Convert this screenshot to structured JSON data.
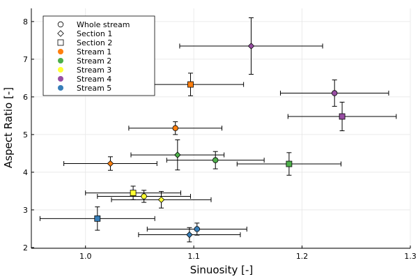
{
  "chart_data": {
    "type": "scatter",
    "title": "",
    "xlabel": "Sinuosity [-]",
    "ylabel": "Aspect Ratio [-]",
    "xlim": [
      0.95,
      1.3
    ],
    "ylim": [
      1.98,
      8.35
    ],
    "x_ticks": [
      1.0,
      1.1,
      1.2,
      1.3
    ],
    "y_ticks": [
      2,
      3,
      4,
      5,
      6,
      7,
      8
    ],
    "grid": true,
    "legend_position": "top-left",
    "shape_legend": [
      {
        "label": "Whole stream",
        "shape": "circle"
      },
      {
        "label": "Section 1",
        "shape": "diamond"
      },
      {
        "label": "Section 2",
        "shape": "square"
      }
    ],
    "series": [
      {
        "name": "Stream 1",
        "color": "#ff7f0e",
        "points": [
          {
            "shape": "circle",
            "x": 1.083,
            "y": 5.17,
            "xerr": 0.043,
            "yerr": 0.17
          },
          {
            "shape": "diamond",
            "x": 1.023,
            "y": 4.23,
            "xerr": 0.043,
            "yerr": 0.18
          },
          {
            "shape": "square",
            "x": 1.097,
            "y": 6.33,
            "xerr": 0.049,
            "yerr": 0.3
          }
        ]
      },
      {
        "name": "Stream 2",
        "color": "#4daf4a",
        "points": [
          {
            "shape": "circle",
            "x": 1.12,
            "y": 4.32,
            "xerr": 0.045,
            "yerr": 0.23
          },
          {
            "shape": "diamond",
            "x": 1.085,
            "y": 4.46,
            "xerr": 0.043,
            "yerr": 0.4
          },
          {
            "shape": "square",
            "x": 1.188,
            "y": 4.22,
            "xerr": 0.048,
            "yerr": 0.3
          }
        ]
      },
      {
        "name": "Stream 3",
        "color": "#ffff33",
        "points": [
          {
            "shape": "circle",
            "x": 1.054,
            "y": 3.36,
            "xerr": 0.043,
            "yerr": 0.16
          },
          {
            "shape": "diamond",
            "x": 1.07,
            "y": 3.27,
            "xerr": 0.046,
            "yerr": 0.22
          },
          {
            "shape": "square",
            "x": 1.044,
            "y": 3.45,
            "xerr": 0.044,
            "yerr": 0.18
          }
        ]
      },
      {
        "name": "Stream 4",
        "color": "#984ea3",
        "points": [
          {
            "shape": "circle",
            "x": 1.23,
            "y": 6.1,
            "xerr": 0.05,
            "yerr": 0.35
          },
          {
            "shape": "diamond",
            "x": 1.153,
            "y": 7.35,
            "xerr": 0.066,
            "yerr": 0.75
          },
          {
            "shape": "square",
            "x": 1.237,
            "y": 5.48,
            "xerr": 0.05,
            "yerr": 0.38
          }
        ]
      },
      {
        "name": "Stream 5",
        "color": "#377eb8",
        "points": [
          {
            "shape": "circle",
            "x": 1.103,
            "y": 2.49,
            "xerr": 0.046,
            "yerr": 0.16
          },
          {
            "shape": "diamond",
            "x": 1.096,
            "y": 2.34,
            "xerr": 0.047,
            "yerr": 0.19
          },
          {
            "shape": "square",
            "x": 1.011,
            "y": 2.77,
            "xerr": 0.053,
            "yerr": 0.31
          }
        ]
      }
    ]
  }
}
